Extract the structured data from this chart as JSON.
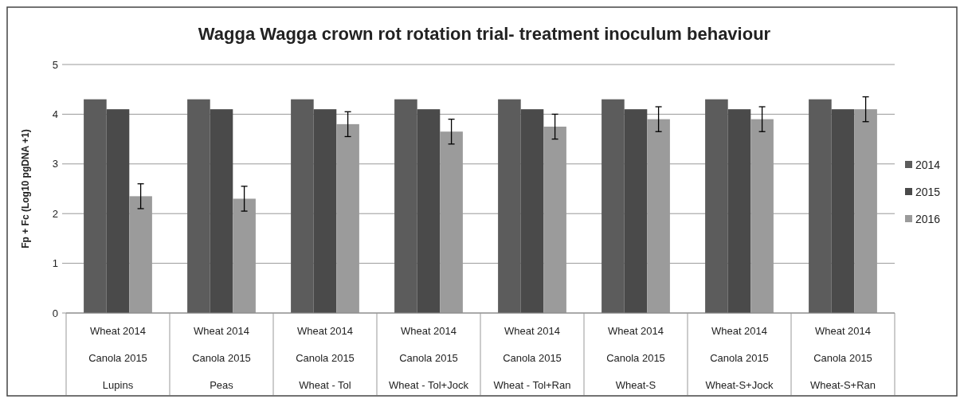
{
  "chart_data": {
    "type": "bar",
    "title": "Wagga Wagga crown rot rotation trial- treatment inoculum behaviour",
    "ylabel": "Fp + Fc (Log10 pgDNA +1)",
    "categories": [
      "Wheat 2014\nCanola 2015\nLupins",
      "Wheat 2014\nCanola 2015\nPeas",
      "Wheat 2014\nCanola 2015\nWheat - Tol",
      "Wheat 2014\nCanola 2015\nWheat - Tol+Jock",
      "Wheat 2014\nCanola 2015\nWheat - Tol+Ran",
      "Wheat 2014\nCanola 2015\nWheat-S",
      "Wheat 2014\nCanola 2015\nWheat-S+Jock",
      "Wheat 2014\nCanola 2015\nWheat-S+Ran"
    ],
    "series": [
      {
        "name": "2014",
        "color": "#5c5c5c",
        "values": [
          4.3,
          4.3,
          4.3,
          4.3,
          4.3,
          4.3,
          4.3,
          4.3
        ]
      },
      {
        "name": "2015",
        "color": "#4a4a4a",
        "values": [
          4.1,
          4.1,
          4.1,
          4.1,
          4.1,
          4.1,
          4.1,
          4.1
        ]
      },
      {
        "name": "2016",
        "color": "#9b9b9b",
        "values": [
          2.35,
          2.3,
          3.8,
          3.65,
          3.75,
          3.9,
          3.9,
          4.1
        ],
        "errors": [
          0.25,
          0.25,
          0.25,
          0.25,
          0.25,
          0.25,
          0.25,
          0.25
        ]
      }
    ],
    "ylim": [
      0,
      5
    ],
    "yticks": [
      0,
      1,
      2,
      3,
      4,
      5
    ],
    "grid": "y",
    "legend": "right"
  }
}
